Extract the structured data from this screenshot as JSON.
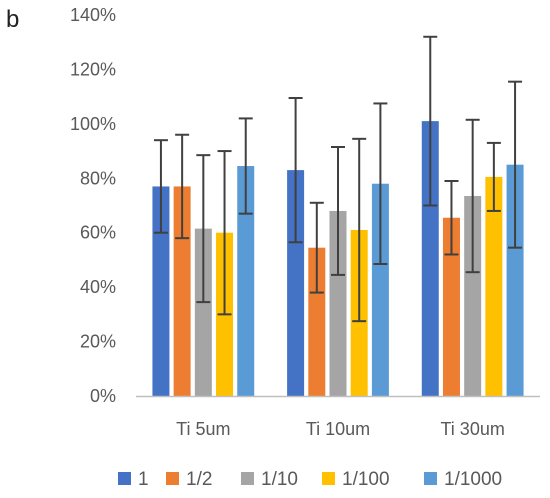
{
  "panel_label": "b",
  "chart_data": {
    "type": "bar",
    "categories": [
      "Ti 5um",
      "Ti 10um",
      "Ti 30um"
    ],
    "ylim": [
      0,
      1.4
    ],
    "yticks": [
      0,
      0.2,
      0.4,
      0.6,
      0.8,
      1.0,
      1.2,
      1.4
    ],
    "ytick_labels": [
      "0%",
      "20%",
      "40%",
      "60%",
      "80%",
      "100%",
      "120%",
      "140%"
    ],
    "grid": false,
    "error_bars": true,
    "legend_position": "bottom",
    "series": [
      {
        "name": "1",
        "color": "#4472C4",
        "values": [
          0.77,
          0.83,
          1.01
        ],
        "errors": [
          0.17,
          0.265,
          0.31
        ]
      },
      {
        "name": "1/2",
        "color": "#ED7D31",
        "values": [
          0.77,
          0.545,
          0.655
        ],
        "errors": [
          0.19,
          0.165,
          0.135
        ]
      },
      {
        "name": "1/10",
        "color": "#A5A5A5",
        "values": [
          0.615,
          0.68,
          0.735
        ],
        "errors": [
          0.27,
          0.235,
          0.28
        ]
      },
      {
        "name": "1/100",
        "color": "#FFC000",
        "values": [
          0.6,
          0.61,
          0.805
        ],
        "errors": [
          0.3,
          0.335,
          0.125
        ]
      },
      {
        "name": "1/1000",
        "color": "#5B9BD5",
        "values": [
          0.845,
          0.78,
          0.85
        ],
        "errors": [
          0.175,
          0.295,
          0.305
        ]
      }
    ]
  }
}
